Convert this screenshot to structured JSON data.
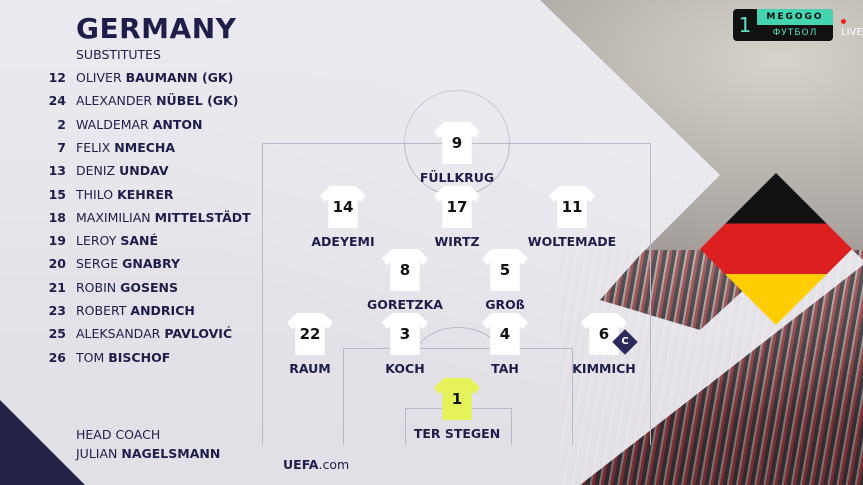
{
  "team": "GERMANY",
  "substitutes_label": "SUBSTITUTES",
  "substitutes": [
    {
      "number": "12",
      "first": "OLIVER",
      "last": "BAUMANN (GK)"
    },
    {
      "number": "24",
      "first": "ALEXANDER",
      "last": "NÜBEL (GK)"
    },
    {
      "number": "2",
      "first": "WALDEMAR",
      "last": "ANTON"
    },
    {
      "number": "7",
      "first": "FELIX",
      "last": "NMECHA"
    },
    {
      "number": "13",
      "first": "DENIZ",
      "last": "UNDAV"
    },
    {
      "number": "15",
      "first": "THILO",
      "last": "KEHRER"
    },
    {
      "number": "18",
      "first": "MAXIMILIAN",
      "last": "MITTELSTÄDT"
    },
    {
      "number": "19",
      "first": "LEROY",
      "last": "SANÉ"
    },
    {
      "number": "20",
      "first": "SERGE",
      "last": "GNABRY"
    },
    {
      "number": "21",
      "first": "ROBIN",
      "last": "GOSENS"
    },
    {
      "number": "23",
      "first": "ROBERT",
      "last": "ANDRICH"
    },
    {
      "number": "25",
      "first": "ALEKSANDAR",
      "last": "PAVLOVIĆ"
    },
    {
      "number": "26",
      "first": "TOM",
      "last": "BISCHOF"
    }
  ],
  "coach": {
    "label": "HEAD COACH",
    "first": "JULIAN",
    "last": "NAGELSMANN"
  },
  "lineup": [
    {
      "number": "9",
      "name": "FÜLLKRUG"
    },
    {
      "number": "14",
      "name": "ADEYEMI"
    },
    {
      "number": "17",
      "name": "WIRTZ"
    },
    {
      "number": "11",
      "name": "WOLTEMADE"
    },
    {
      "number": "8",
      "name": "GORETZKA"
    },
    {
      "number": "5",
      "name": "GROß"
    },
    {
      "number": "22",
      "name": "RAUM"
    },
    {
      "number": "3",
      "name": "KOCH"
    },
    {
      "number": "4",
      "name": "TAH"
    },
    {
      "number": "6",
      "name": "KIMMICH",
      "captain": true
    },
    {
      "number": "1",
      "name": "TER STEGEN",
      "goalkeeper": true
    }
  ],
  "captain_badge": "C",
  "footer": {
    "uefa_bold": "UEFA",
    "uefa_rest": ".com"
  },
  "broadcaster": {
    "channel": "1",
    "brand": "MEGOGO",
    "sub": "ФУТБОЛ",
    "live": "LIVE"
  },
  "colors": {
    "text": "#1f1d4a",
    "gk_shirt": "#e6f25a",
    "flag": [
      "#111111",
      "#dd1f1f",
      "#ffce00"
    ]
  }
}
